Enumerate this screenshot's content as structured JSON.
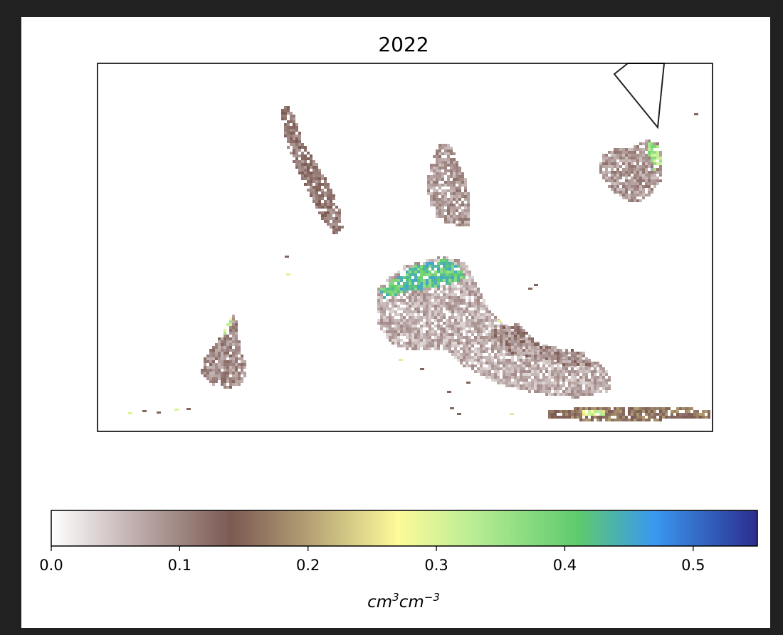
{
  "chart_data": {
    "type": "heatmap",
    "title": "2022",
    "xlabel": "",
    "ylabel": "",
    "colorbar": {
      "label_base": "cm",
      "label_exp1": "3",
      "label_exp2": "−3",
      "range": [
        0.0,
        0.55
      ],
      "ticks": [
        0.0,
        0.1,
        0.2,
        0.3,
        0.4,
        0.5
      ],
      "tick_labels": [
        "0.0",
        "0.1",
        "0.2",
        "0.3",
        "0.4",
        "0.5"
      ],
      "colormap_stops": [
        {
          "value": 0.0,
          "color": "#ffffff"
        },
        {
          "value": 0.07,
          "color": "#bba9a8"
        },
        {
          "value": 0.14,
          "color": "#7b5a52"
        },
        {
          "value": 0.2,
          "color": "#b3a075"
        },
        {
          "value": 0.27,
          "color": "#fdfa99"
        },
        {
          "value": 0.33,
          "color": "#b8ec94"
        },
        {
          "value": 0.41,
          "color": "#5ecb6c"
        },
        {
          "value": 0.47,
          "color": "#3a98f0"
        },
        {
          "value": 0.55,
          "color": "#2b2d8e"
        }
      ]
    },
    "regions": [
      {
        "name": "north-strip",
        "value_range": [
          0.08,
          0.14
        ],
        "highlight": 0.38
      },
      {
        "name": "center-top-island",
        "value_range": [
          0.05,
          0.12
        ],
        "highlight": 0.3
      },
      {
        "name": "center-large-block",
        "value_range": [
          0.03,
          0.1
        ],
        "highlight": 0.4
      },
      {
        "name": "northeast-island",
        "value_range": [
          0.05,
          0.12
        ],
        "highlight": 0.33
      },
      {
        "name": "southwest-island",
        "value_range": [
          0.06,
          0.13
        ],
        "highlight": 0.3
      },
      {
        "name": "southeast-cluster",
        "value_range": [
          0.05,
          0.14
        ],
        "highlight": 0.33
      },
      {
        "name": "southern-edge-strip",
        "value_range": [
          0.12,
          0.2
        ],
        "highlight": 0.28
      }
    ],
    "grid": false
  }
}
